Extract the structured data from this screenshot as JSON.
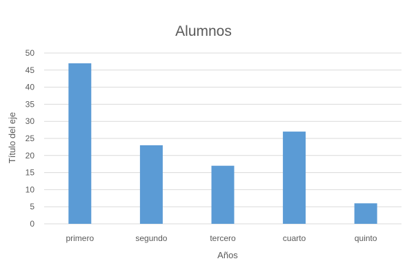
{
  "chart_data": {
    "type": "bar",
    "title": "Alumnos",
    "categories": [
      "primero",
      "segundo",
      "tercero",
      "cuarto",
      "quinto"
    ],
    "values": [
      47,
      23,
      17,
      27,
      6
    ],
    "xlabel": "Años",
    "ylabel": "Título del eje",
    "ylim": [
      0,
      50
    ],
    "yticks": [
      0,
      5,
      10,
      15,
      20,
      25,
      30,
      35,
      40,
      45,
      50
    ],
    "grid": true,
    "legend": "none",
    "colors": {
      "bar": "#5b9bd5",
      "grid": "#d9d9d9",
      "text": "#595959"
    }
  }
}
